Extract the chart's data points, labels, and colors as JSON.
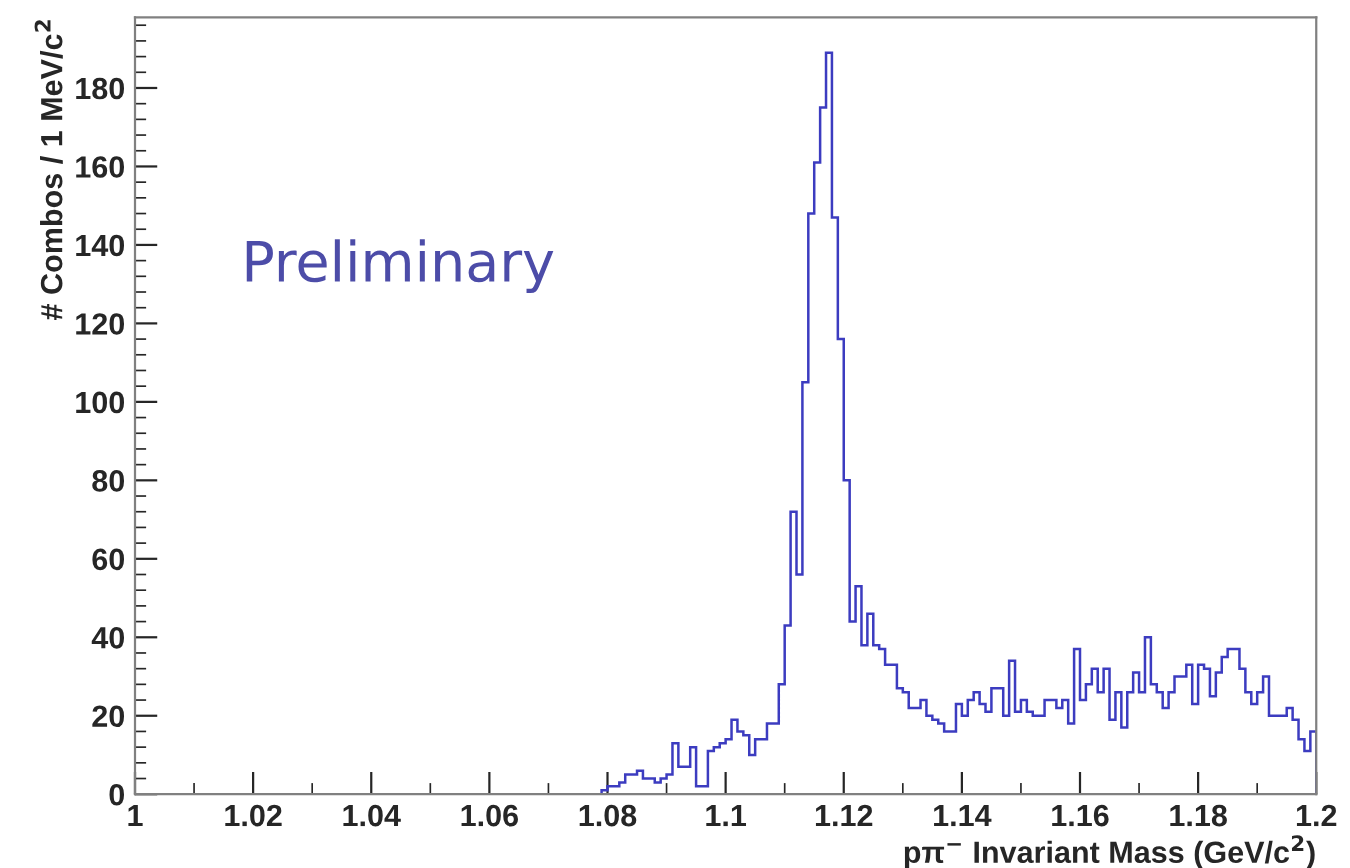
{
  "chart_data": {
    "type": "histogram",
    "xlabel": "pπ$^{−}$ Invariant Mass (GeV/c$^{2}$)",
    "ylabel": "# Combos / 1 MeV/c$^{2}$",
    "annotations": [
      "Preliminary"
    ],
    "color": "#3c3cc0",
    "bins": [
      1,
      1.001,
      1.002,
      1.003,
      1.004,
      1.005,
      1.006,
      1.007,
      1.008,
      1.009,
      1.01,
      1.011,
      1.012,
      1.013,
      1.014,
      1.015,
      1.016,
      1.017,
      1.018,
      1.019,
      1.02,
      1.021,
      1.022,
      1.023,
      1.024,
      1.025,
      1.026,
      1.027,
      1.028,
      1.029,
      1.03,
      1.031,
      1.032,
      1.033,
      1.034,
      1.035,
      1.036,
      1.037,
      1.038,
      1.039,
      1.04,
      1.041,
      1.042,
      1.043,
      1.044,
      1.045,
      1.046,
      1.047,
      1.048,
      1.049,
      1.05,
      1.051,
      1.052,
      1.053,
      1.054,
      1.055,
      1.056,
      1.057,
      1.058,
      1.059,
      1.06,
      1.061,
      1.062,
      1.063,
      1.064,
      1.065,
      1.066,
      1.067,
      1.068,
      1.069,
      1.07,
      1.071,
      1.072,
      1.073,
      1.074,
      1.075,
      1.076,
      1.077,
      1.078,
      1.079,
      1.08,
      1.081,
      1.082,
      1.083,
      1.084,
      1.085,
      1.086,
      1.087,
      1.088,
      1.089,
      1.09,
      1.091,
      1.092,
      1.093,
      1.094,
      1.095,
      1.096,
      1.097,
      1.098,
      1.099,
      1.1,
      1.101,
      1.102,
      1.103,
      1.104,
      1.105,
      1.106,
      1.107,
      1.108,
      1.109,
      1.11,
      1.111,
      1.112,
      1.113,
      1.114,
      1.115,
      1.116,
      1.117,
      1.118,
      1.119,
      1.12,
      1.121,
      1.122,
      1.123,
      1.124,
      1.125,
      1.126,
      1.127,
      1.128,
      1.129,
      1.13,
      1.131,
      1.132,
      1.133,
      1.134,
      1.135,
      1.136,
      1.137,
      1.138,
      1.139,
      1.14,
      1.141,
      1.142,
      1.143,
      1.144,
      1.145,
      1.146,
      1.147,
      1.148,
      1.149,
      1.15,
      1.151,
      1.152,
      1.153,
      1.154,
      1.155,
      1.156,
      1.157,
      1.158,
      1.159,
      1.16,
      1.161,
      1.162,
      1.163,
      1.164,
      1.165,
      1.166,
      1.167,
      1.168,
      1.169,
      1.17,
      1.171,
      1.172,
      1.173,
      1.174,
      1.175,
      1.176,
      1.177,
      1.178,
      1.179,
      1.18,
      1.181,
      1.182,
      1.183,
      1.184,
      1.185,
      1.186,
      1.187,
      1.188,
      1.189,
      1.19,
      1.191,
      1.192,
      1.193,
      1.194,
      1.195,
      1.196,
      1.197,
      1.198,
      1.199,
      1.2
    ],
    "values": [
      0,
      0,
      0,
      0,
      0,
      0,
      0,
      0,
      0,
      0,
      0,
      0,
      0,
      0,
      0,
      0,
      0,
      0,
      0,
      0,
      0,
      0,
      0,
      0,
      0,
      0,
      0,
      0,
      0,
      0,
      0,
      0,
      0,
      0,
      0,
      0,
      0,
      0,
      0,
      0,
      0,
      0,
      0,
      0,
      0,
      0,
      0,
      0,
      0,
      0,
      0,
      0,
      0,
      0,
      0,
      0,
      0,
      0,
      0,
      0,
      0,
      0,
      0,
      0,
      0,
      0,
      0,
      0,
      0,
      0,
      0,
      0,
      0,
      0,
      0,
      0,
      0,
      0,
      0,
      1,
      2,
      2,
      3,
      5,
      5,
      6,
      4,
      4,
      3,
      4,
      5,
      13,
      7,
      7,
      12,
      2,
      2,
      11,
      12,
      13,
      14,
      19,
      16,
      15,
      10,
      14,
      14,
      18,
      18,
      28,
      43,
      72,
      56,
      105,
      148,
      161,
      175,
      189,
      147,
      116,
      80,
      44,
      53,
      38,
      46,
      38,
      37,
      33,
      33,
      27,
      26,
      22,
      22,
      24,
      20,
      19,
      18,
      16,
      16,
      23,
      20,
      24,
      26,
      23,
      21,
      27,
      27,
      20,
      34,
      21,
      24,
      21,
      20,
      20,
      24,
      24,
      22,
      24,
      18,
      37,
      24,
      28,
      32,
      26,
      32,
      19,
      26,
      17,
      26,
      31,
      26,
      40,
      28,
      26,
      22,
      26,
      30,
      30,
      33,
      23,
      33,
      32,
      25,
      31,
      35,
      37,
      37,
      32,
      26,
      23,
      26,
      30,
      20,
      20,
      20,
      22,
      19,
      14,
      11,
      16
    ],
    "xlim": [
      1,
      1.2
    ],
    "ylim": [
      0,
      198
    ],
    "xticks": [
      1,
      1.02,
      1.04,
      1.06,
      1.08,
      1.1,
      1.12,
      1.14,
      1.16,
      1.18,
      1.2
    ],
    "yticks": [
      0,
      20,
      40,
      60,
      80,
      100,
      120,
      140,
      160,
      180
    ],
    "grid": false,
    "legend": false
  }
}
